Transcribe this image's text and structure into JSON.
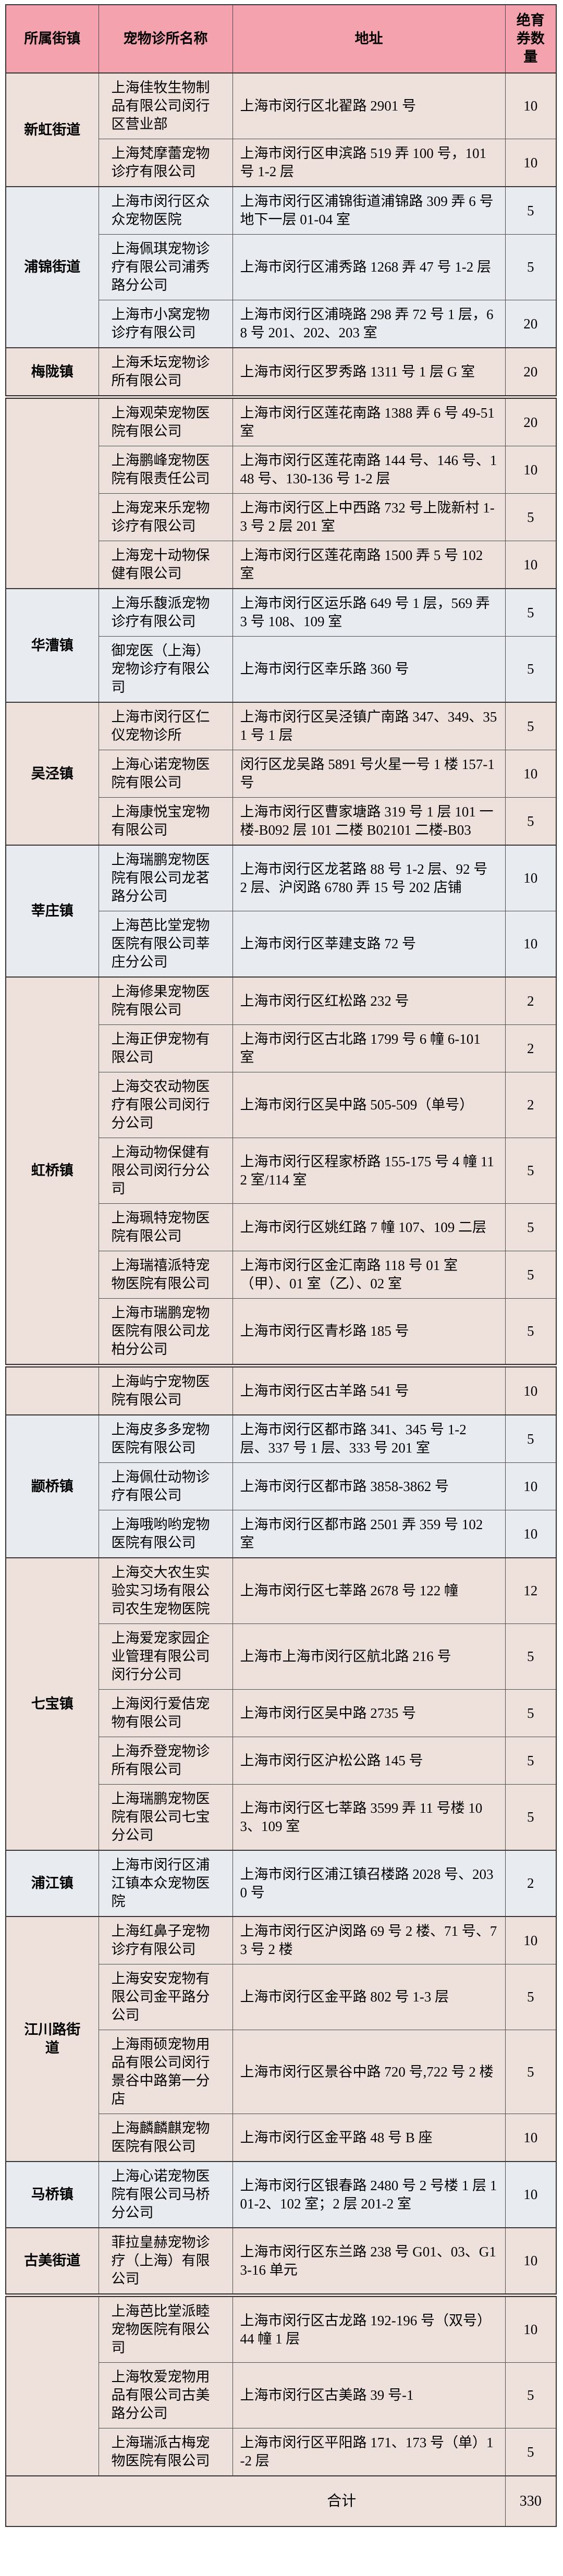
{
  "header": {
    "columns": [
      "所属街镇",
      "宠物诊所名称",
      "地址",
      "绝育券数量"
    ]
  },
  "colors": {
    "header_bg": "#F3A2AE",
    "warm_row_bg": "#EEE1DC",
    "cool_row_bg": "#E8EBF0",
    "border": "#353535"
  },
  "groups": [
    {
      "town": "新虹街道",
      "theme": "warm",
      "clinics": [
        {
          "name": "上海佳牧生物制品有限公司闵行区营业部",
          "address": "上海市闵行区北翟路 2901 号",
          "vouchers": "10"
        },
        {
          "name": "上海梵摩蕾宠物诊疗有限公司",
          "address": "上海市闵行区申滨路 519 弄 100 号，101 号 1-2 层",
          "vouchers": "10"
        }
      ]
    },
    {
      "town": "浦锦街道",
      "theme": "cool",
      "clinics": [
        {
          "name": "上海市闵行区众众宠物医院",
          "address": "上海市闵行区浦锦街道浦锦路 309 弄 6 号地下一层 01-04 室",
          "vouchers": "5"
        },
        {
          "name": "上海佩琪宠物诊疗有限公司浦秀路分公司",
          "address": "上海市闵行区浦秀路 1268 弄 47 号 1-2 层",
          "vouchers": "5"
        },
        {
          "name": "上海市小窝宠物诊疗有限公司",
          "address": "上海市闵行区浦晓路 298 弄 72 号 1 层，68 号 201、202、203 室",
          "vouchers": "20"
        }
      ]
    },
    {
      "town": "梅陇镇",
      "theme": "warm",
      "clinics": [
        {
          "name": "上海禾坛宠物诊所有限公司",
          "address": "上海市闵行区罗秀路 1311 号 1 层 G 室",
          "vouchers": "20"
        }
      ]
    },
    {
      "town": "",
      "theme": "warm",
      "page_break_before": true,
      "clinics": [
        {
          "name": "上海观荣宠物医院有限公司",
          "address": "上海市闵行区莲花南路 1388 弄 6 号 49-51 室",
          "vouchers": "20"
        },
        {
          "name": "上海鹏峰宠物医院有限责任公司",
          "address": "上海市闵行区莲花南路 144 号、146 号、148 号、130-136 号 1-2 层",
          "vouchers": "10"
        },
        {
          "name": "上海宠来乐宠物诊疗有限公司",
          "address": "上海市闵行区上中西路 732 号上陇新村 1-3 号 2 层 201 室",
          "vouchers": "5"
        },
        {
          "name": "上海宠十动物保健有限公司",
          "address": "上海市闵行区莲花南路 1500 弄 5 号 102 室",
          "vouchers": "10"
        }
      ]
    },
    {
      "town": "华漕镇",
      "theme": "cool",
      "clinics": [
        {
          "name": "上海乐馥派宠物诊疗有限公司",
          "address": "上海市闵行区运乐路 649 号 1 层，569 弄 3 号 108、109 室",
          "vouchers": "5"
        },
        {
          "name": "御宠医（上海）宠物诊疗有限公司",
          "address": "上海市闵行区幸乐路 360 号",
          "vouchers": "5"
        }
      ]
    },
    {
      "town": "吴泾镇",
      "theme": "warm",
      "clinics": [
        {
          "name": "上海市闵行区仁仪宠物诊所",
          "address": "上海市闵行区吴泾镇广南路 347、349、351 号 1 层",
          "vouchers": "5"
        },
        {
          "name": "上海心诺宠物医院有限公司",
          "address": "闵行区龙吴路 5891 号火星一号 1 楼 157-1 号",
          "vouchers": "10"
        },
        {
          "name": "上海康悦宝宠物有限公司",
          "address": "上海市闵行区曹家塘路 319 号 1 层 101 一楼-B092 层 101 二楼 B02101 二楼-B03",
          "vouchers": "5"
        }
      ]
    },
    {
      "town": "莘庄镇",
      "theme": "cool",
      "clinics": [
        {
          "name": "上海瑞鹏宠物医院有限公司龙茗路分公司",
          "address": "上海市闵行区龙茗路 88 号 1-2 层、92 号 2 层、沪闵路 6780 弄 15 号 202 店铺",
          "vouchers": "10"
        },
        {
          "name": "上海芭比堂宠物医院有限公司莘庄分公司",
          "address": "上海市闵行区莘建支路 72 号",
          "vouchers": "10"
        }
      ]
    },
    {
      "town": "虹桥镇",
      "theme": "warm",
      "clinics": [
        {
          "name": "上海修果宠物医院有限公司",
          "address": "上海市闵行区红松路 232 号",
          "vouchers": "2"
        },
        {
          "name": "上海正伊宠物有限公司",
          "address": "上海市闵行区古北路 1799 号 6 幢 6-101 室",
          "vouchers": "2"
        },
        {
          "name": "上海交农动物医疗有限公司闵行分公司",
          "address": "上海市闵行区吴中路 505-509（单号）",
          "vouchers": "2"
        },
        {
          "name": "上海动物保健有限公司闵行分公司",
          "address": "上海市闵行区程家桥路 155-175 号 4 幢 112 室/114 室",
          "vouchers": "5"
        },
        {
          "name": "上海珮特宠物医院有限公司",
          "address": "上海市闵行区姚红路 7 幢 107、109 二层",
          "vouchers": "5"
        },
        {
          "name": "上海瑞禧派特宠物医院有限公司",
          "address": "上海市闵行区金汇南路 118 号 01 室（甲）、01 室（乙）、02 室",
          "vouchers": "5"
        },
        {
          "name": "上海市瑞鹏宠物医院有限公司龙柏分公司",
          "address": "上海市闵行区青杉路 185 号",
          "vouchers": "5"
        }
      ]
    },
    {
      "town": "",
      "theme": "warm",
      "page_break_before": true,
      "clinics": [
        {
          "name": "上海屿宁宠物医院有限公司",
          "address": "上海市闵行区古羊路 541 号",
          "vouchers": "10"
        }
      ]
    },
    {
      "town": "颛桥镇",
      "theme": "cool",
      "clinics": [
        {
          "name": "上海皮多多宠物医院有限公司",
          "address": "上海市闵行区都市路 341、345 号 1-2 层、337 号 1 层、333 号 201 室",
          "vouchers": "5"
        },
        {
          "name": "上海佩仕动物诊疗有限公司",
          "address": "上海市闵行区都市路 3858-3862 号",
          "vouchers": "10"
        },
        {
          "name": "上海哦哟哟宠物医院有限公司",
          "address": "上海市闵行区都市路 2501 弄 359 号 102 室",
          "vouchers": "10"
        }
      ]
    },
    {
      "town": "七宝镇",
      "theme": "warm",
      "clinics": [
        {
          "name": "上海交大农生实验实习场有限公司农生宠物医院",
          "address": "上海市闵行区七莘路 2678 号 122 幢",
          "vouchers": "12"
        },
        {
          "name": "上海爱宠家园企业管理有限公司闵行分公司",
          "address": "上海市上海市闵行区航北路 216 号",
          "vouchers": "5"
        },
        {
          "name": "上海闵行爱佶宠物有限公司",
          "address": "上海市闵行区吴中路 2735 号",
          "vouchers": "5"
        },
        {
          "name": "上海乔登宠物诊所有限公司",
          "address": "上海市闵行区沪松公路 145 号",
          "vouchers": "5"
        },
        {
          "name": "上海瑞鹏宠物医院有限公司七宝分公司",
          "address": "上海市闵行区七莘路 3599 弄 11 号楼 103、109 室",
          "vouchers": "5"
        }
      ]
    },
    {
      "town": "浦江镇",
      "theme": "cool",
      "clinics": [
        {
          "name": "上海市闵行区浦江镇本众宠物医院",
          "address": "上海市闵行区浦江镇召楼路 2028 号、2030 号",
          "vouchers": "2"
        }
      ]
    },
    {
      "town": "江川路街道",
      "theme": "warm",
      "clinics": [
        {
          "name": "上海红鼻子宠物诊疗有限公司",
          "address": "上海市闵行区沪闵路 69 号 2 楼、71 号、73 号 2 楼",
          "vouchers": "10"
        },
        {
          "name": "上海安安宠物有限公司金平路分公司",
          "address": "上海市闵行区金平路 802 号 1-3 层",
          "vouchers": "5"
        },
        {
          "name": "上海雨硕宠物用品有限公司闵行景谷中路第一分店",
          "address": "上海市闵行区景谷中路 720 号,722 号 2 楼",
          "vouchers": "5"
        },
        {
          "name": "上海麟麟麒宠物医院有限公司",
          "address": "上海市闵行区金平路 48 号 B 座",
          "vouchers": "10"
        }
      ]
    },
    {
      "town": "马桥镇",
      "theme": "cool",
      "clinics": [
        {
          "name": "上海心诺宠物医院有限公司马桥分公司",
          "address": "上海市闵行区银春路 2480 号 2 号楼 1 层 101-2、102 室；2 层 201-2 室",
          "vouchers": "10"
        }
      ]
    },
    {
      "town": "古美街道",
      "theme": "warm",
      "clinics": [
        {
          "name": "菲拉皇赫宠物诊疗（上海）有限公司",
          "address": "上海市闵行区东兰路 238 号 G01、03、G13-16 单元",
          "vouchers": "10"
        }
      ]
    },
    {
      "town": "",
      "theme": "warm",
      "page_break_before": true,
      "clinics": [
        {
          "name": "上海芭比堂派睦宠物医院有限公司",
          "address": "上海市闵行区古龙路 192-196 号（双号）44 幢 1 层",
          "vouchers": "10"
        },
        {
          "name": "上海牧爱宠物用品有限公司古美路分公司",
          "address": "上海市闵行区古美路 39 号-1",
          "vouchers": "5"
        },
        {
          "name": "上海瑞派古梅宠物医院有限公司",
          "address": "上海市闵行区平阳路 171、173 号（单）1-2 层",
          "vouchers": "5"
        }
      ]
    }
  ],
  "footer": {
    "label": "合计",
    "total": "330"
  }
}
